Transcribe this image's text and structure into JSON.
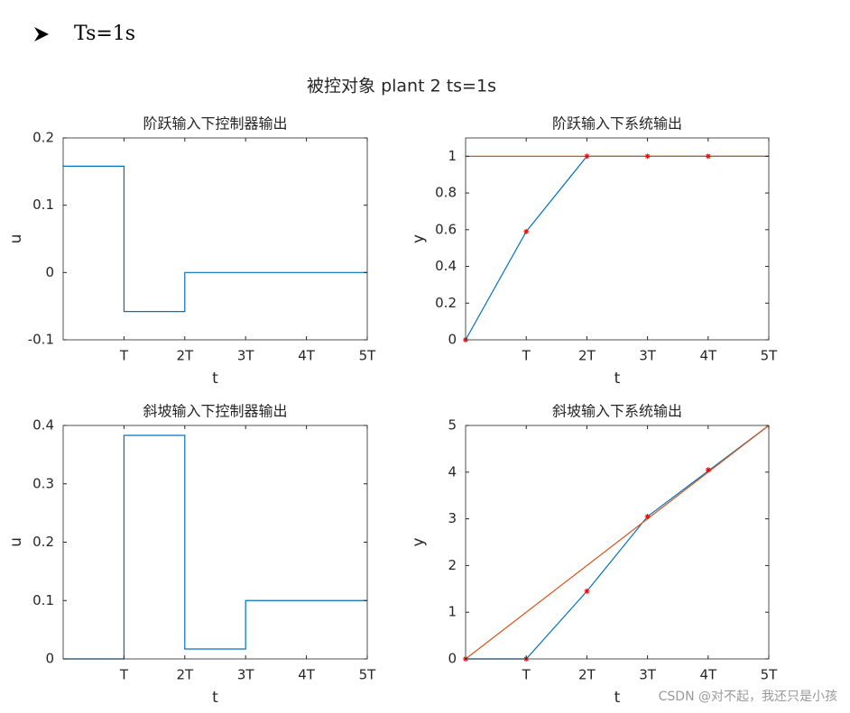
{
  "heading": "Ts=1s",
  "suptitle": "被控对象 plant 2  ts=1s",
  "watermark": "CSDN @对不起，我还只是小孩",
  "chart_data": [
    {
      "type": "line",
      "title": "阶跃输入下控制器输出",
      "xlabel": "t",
      "ylabel": "u",
      "xlim": [
        0,
        5
      ],
      "ylim": [
        -0.1,
        0.2
      ],
      "xticks": [
        {
          "value": 1,
          "label": "T"
        },
        {
          "value": 2,
          "label": "2T"
        },
        {
          "value": 3,
          "label": "3T"
        },
        {
          "value": 4,
          "label": "4T"
        },
        {
          "value": 5,
          "label": "5T"
        }
      ],
      "yticks": [
        -0.1,
        0,
        0.1,
        0.2
      ],
      "series": [
        {
          "color": "#0072bd",
          "x": [
            0,
            1,
            1,
            2,
            2,
            5
          ],
          "values": [
            0.158,
            0.158,
            -0.058,
            -0.058,
            0,
            0
          ]
        }
      ]
    },
    {
      "type": "line",
      "title": "阶跃输入下系统输出",
      "xlabel": "t",
      "ylabel": "y",
      "xlim": [
        0,
        5
      ],
      "ylim": [
        0,
        1.1
      ],
      "xticks": [
        {
          "value": 1,
          "label": "T"
        },
        {
          "value": 2,
          "label": "2T"
        },
        {
          "value": 3,
          "label": "3T"
        },
        {
          "value": 4,
          "label": "4T"
        },
        {
          "value": 5,
          "label": "5T"
        }
      ],
      "yticks": [
        0,
        0.2,
        0.4,
        0.6,
        0.8,
        1
      ],
      "series": [
        {
          "color": "#0072bd",
          "x": [
            0,
            1,
            2,
            5
          ],
          "values": [
            0,
            0.59,
            1,
            1
          ]
        },
        {
          "color": "#d95319",
          "x": [
            0,
            5
          ],
          "values": [
            1,
            1
          ]
        },
        {
          "color": "#ff0000",
          "marker": "*",
          "x": [
            0,
            1,
            2,
            3,
            4
          ],
          "values": [
            0,
            0.59,
            1,
            1,
            1
          ]
        }
      ]
    },
    {
      "type": "line",
      "title": "斜坡输入下控制器输出",
      "xlabel": "t",
      "ylabel": "u",
      "xlim": [
        0,
        5
      ],
      "ylim": [
        0,
        0.4
      ],
      "xticks": [
        {
          "value": 1,
          "label": "T"
        },
        {
          "value": 2,
          "label": "2T"
        },
        {
          "value": 3,
          "label": "3T"
        },
        {
          "value": 4,
          "label": "4T"
        },
        {
          "value": 5,
          "label": "5T"
        }
      ],
      "yticks": [
        0,
        0.1,
        0.2,
        0.3,
        0.4
      ],
      "series": [
        {
          "color": "#0072bd",
          "x": [
            0,
            1,
            1,
            2,
            2,
            3,
            3,
            5
          ],
          "values": [
            0,
            0,
            0.383,
            0.383,
            0.017,
            0.017,
            0.1,
            0.1
          ]
        }
      ]
    },
    {
      "type": "line",
      "title": "斜坡输入下系统输出",
      "xlabel": "t",
      "ylabel": "y",
      "xlim": [
        0,
        5
      ],
      "ylim": [
        0,
        5
      ],
      "xticks": [
        {
          "value": 1,
          "label": "T"
        },
        {
          "value": 2,
          "label": "2T"
        },
        {
          "value": 3,
          "label": "3T"
        },
        {
          "value": 4,
          "label": "4T"
        },
        {
          "value": 5,
          "label": "5T"
        }
      ],
      "yticks": [
        0,
        1,
        2,
        3,
        4,
        5
      ],
      "series": [
        {
          "color": "#0072bd",
          "x": [
            0,
            1,
            2,
            3,
            5
          ],
          "values": [
            0,
            0,
            1.45,
            3.05,
            5
          ]
        },
        {
          "color": "#d95319",
          "x": [
            0,
            5
          ],
          "values": [
            0,
            5
          ]
        },
        {
          "color": "#ff0000",
          "marker": "*",
          "x": [
            0,
            1,
            2,
            3,
            4
          ],
          "values": [
            0,
            0,
            1.45,
            3.05,
            4.05
          ]
        }
      ]
    }
  ]
}
